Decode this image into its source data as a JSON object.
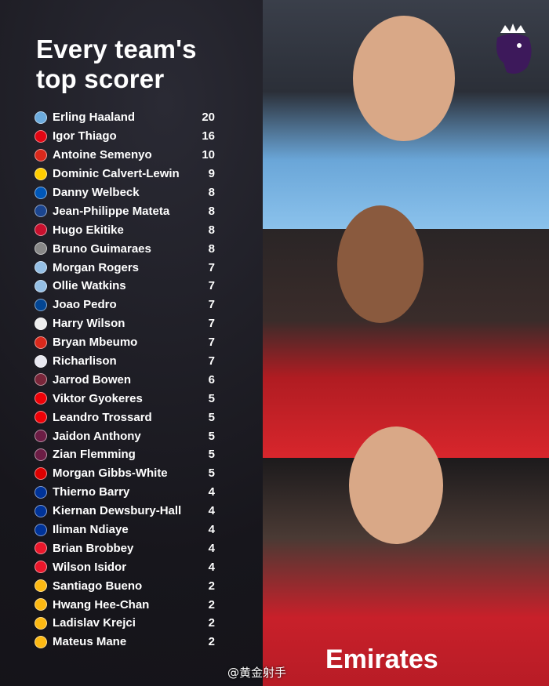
{
  "title_line1": "Every team's",
  "title_line2": "top scorer",
  "logo": "Premier League",
  "watermark": "@黄金射手",
  "sponsor_text": "Emirates",
  "players": [
    {
      "name": "Erling Haaland",
      "goals": "20",
      "badge": "#6cabdd"
    },
    {
      "name": "Igor Thiago",
      "goals": "16",
      "badge": "#e30613"
    },
    {
      "name": "Antoine Semenyo",
      "goals": "10",
      "badge": "#da291c"
    },
    {
      "name": "Dominic Calvert-Lewin",
      "goals": "9",
      "badge": "#ffcd00"
    },
    {
      "name": "Danny Welbeck",
      "goals": "8",
      "badge": "#0057b8"
    },
    {
      "name": "Jean-Philippe Mateta",
      "goals": "8",
      "badge": "#1b458f"
    },
    {
      "name": "Hugo Ekitike",
      "goals": "8",
      "badge": "#c8102e"
    },
    {
      "name": "Bruno Guimaraes",
      "goals": "8",
      "badge": "#888888"
    },
    {
      "name": "Morgan Rogers",
      "goals": "7",
      "badge": "#95bfe5"
    },
    {
      "name": "Ollie Watkins",
      "goals": "7",
      "badge": "#95bfe5"
    },
    {
      "name": "Joao Pedro",
      "goals": "7",
      "badge": "#034694"
    },
    {
      "name": "Harry Wilson",
      "goals": "7",
      "badge": "#eeeeee"
    },
    {
      "name": "Bryan Mbeumo",
      "goals": "7",
      "badge": "#da291c"
    },
    {
      "name": "Richarlison",
      "goals": "7",
      "badge": "#e8e8f0"
    },
    {
      "name": "Jarrod Bowen",
      "goals": "6",
      "badge": "#7a263a"
    },
    {
      "name": "Viktor Gyokeres",
      "goals": "5",
      "badge": "#ef0107"
    },
    {
      "name": "Leandro Trossard",
      "goals": "5",
      "badge": "#ef0107"
    },
    {
      "name": "Jaidon Anthony",
      "goals": "5",
      "badge": "#6c1d45"
    },
    {
      "name": "Zian Flemming",
      "goals": "5",
      "badge": "#6c1d45"
    },
    {
      "name": "Morgan Gibbs-White",
      "goals": "5",
      "badge": "#dd0000"
    },
    {
      "name": "Thierno Barry",
      "goals": "4",
      "badge": "#003399"
    },
    {
      "name": "Kiernan Dewsbury-Hall",
      "goals": "4",
      "badge": "#003399"
    },
    {
      "name": "Iliman Ndiaye",
      "goals": "4",
      "badge": "#003399"
    },
    {
      "name": "Brian Brobbey",
      "goals": "4",
      "badge": "#eb172b"
    },
    {
      "name": "Wilson Isidor",
      "goals": "4",
      "badge": "#eb172b"
    },
    {
      "name": "Santiago Bueno",
      "goals": "2",
      "badge": "#fdb913"
    },
    {
      "name": "Hwang Hee-Chan",
      "goals": "2",
      "badge": "#fdb913"
    },
    {
      "name": "Ladislav Krejci",
      "goals": "2",
      "badge": "#fdb913"
    },
    {
      "name": "Mateus Mane",
      "goals": "2",
      "badge": "#fdb913"
    }
  ]
}
